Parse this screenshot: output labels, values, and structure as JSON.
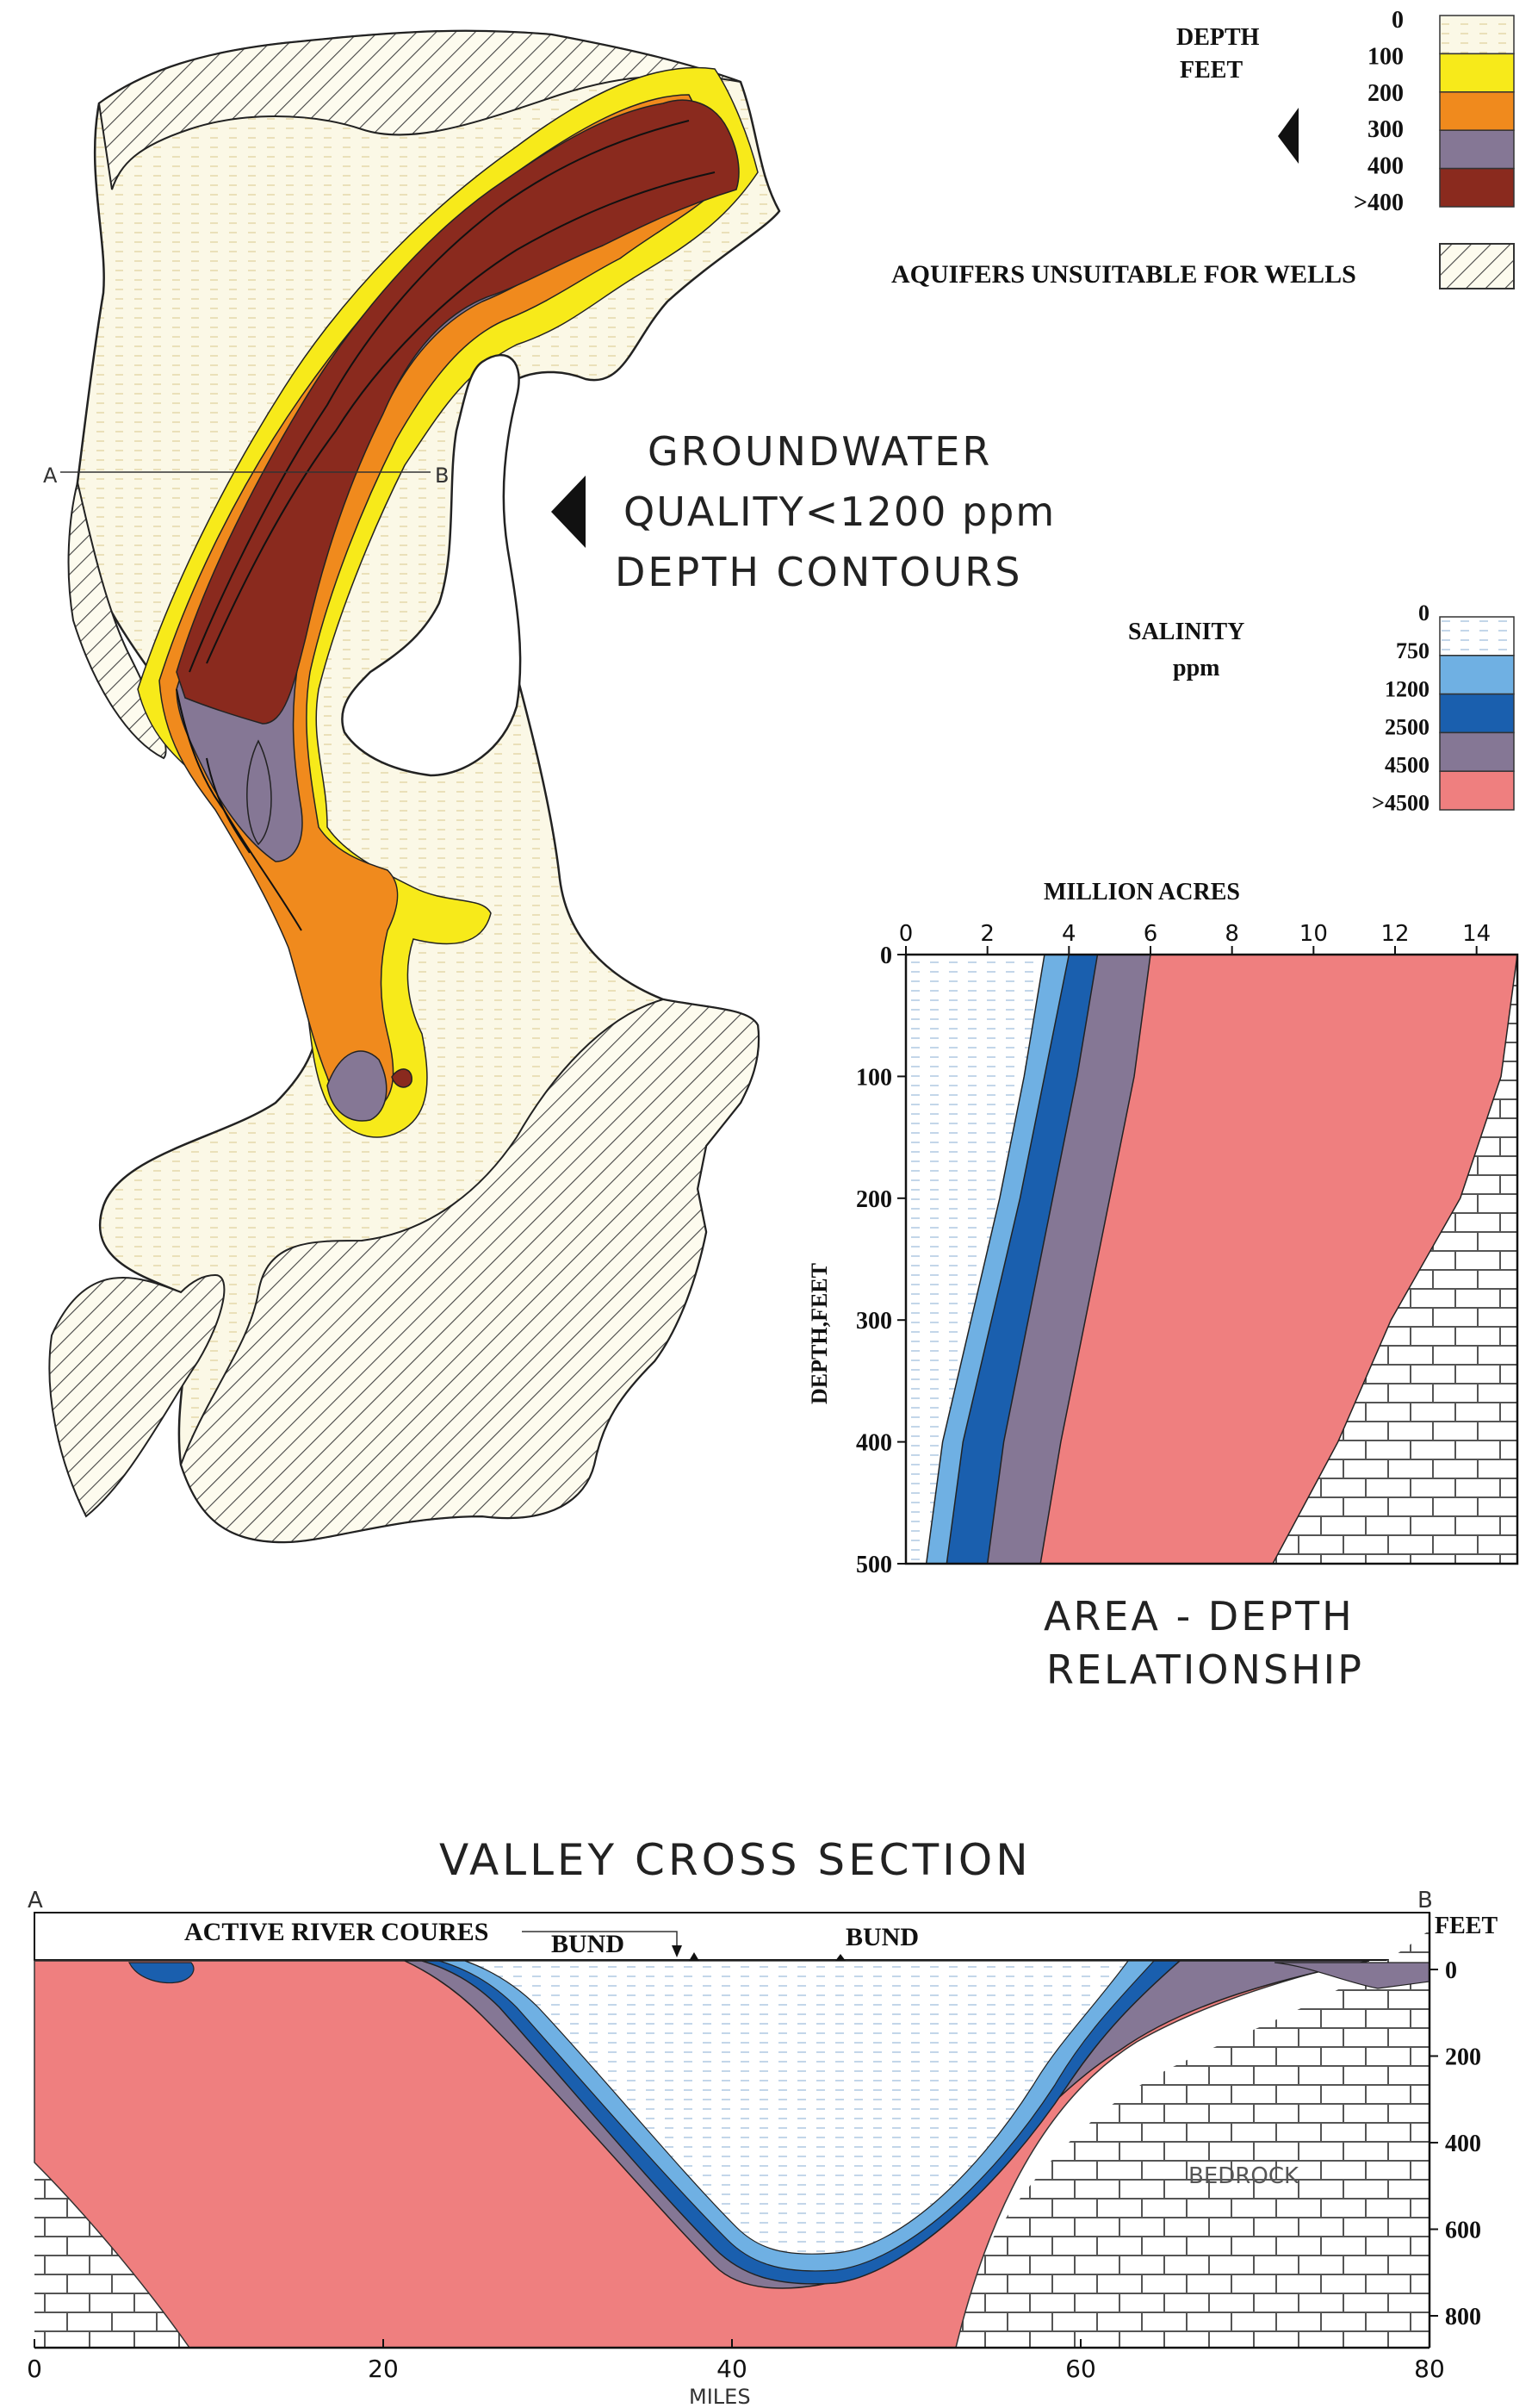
{
  "map": {
    "title_lines": [
      "GROUNDWATER",
      "QUALITY<1200 ppm",
      "DEPTH  CONTOURS"
    ],
    "section_line": {
      "start_label": "A",
      "end_label": "B"
    }
  },
  "depth_legend": {
    "title_lines": [
      "DEPTH",
      "FEET"
    ],
    "items": [
      {
        "label": "0",
        "color": "#fbf8e6"
      },
      {
        "label": "100",
        "color": "#f7ea1a"
      },
      {
        "label": "200",
        "color": "#f08a1d"
      },
      {
        "label": "300",
        "color": "#857795"
      },
      {
        "label": "400",
        "color": "#8a2a1e"
      },
      {
        "label": ">400",
        "color": "#8a2a1e"
      }
    ]
  },
  "unsuitable_legend": {
    "label": "AQUIFERS UNSUITABLE FOR WELLS"
  },
  "salinity_legend": {
    "title_lines": [
      "SALINITY",
      "ppm"
    ],
    "items": [
      {
        "label": "0",
        "color": "#ffffff"
      },
      {
        "label": "750",
        "color": "#eaf2fa"
      },
      {
        "label": "1200",
        "color": "#6fb0e3"
      },
      {
        "label": "2500",
        "color": "#1a5fae"
      },
      {
        "label": "4500",
        "color": "#857795"
      },
      {
        "label": ">4500",
        "color": "#ef7f7f"
      }
    ]
  },
  "area_depth": {
    "x_axis_title": "MILLION ACRES",
    "y_axis_title": "DEPTH,FEET",
    "x_ticks": [
      "0",
      "2",
      "4",
      "6",
      "8",
      "10",
      "12",
      "14"
    ],
    "y_ticks": [
      "0",
      "100",
      "200",
      "300",
      "400",
      "500"
    ],
    "caption_lines": [
      "AREA - DEPTH",
      "RELATIONSHIP"
    ]
  },
  "chart_data": {
    "type": "area",
    "title": "",
    "xlabel": "MILLION ACRES",
    "ylabel": "DEPTH,FEET",
    "xlim": [
      0,
      15
    ],
    "ylim": [
      500,
      0
    ],
    "y": [
      0,
      100,
      200,
      300,
      400,
      500
    ],
    "series": [
      {
        "name": "750",
        "values": [
          3.4,
          2.9,
          2.3,
          1.6,
          0.9,
          0.5
        ]
      },
      {
        "name": "1200",
        "values": [
          4.0,
          3.4,
          2.8,
          2.1,
          1.4,
          1.0
        ]
      },
      {
        "name": "2500",
        "values": [
          4.7,
          4.2,
          3.6,
          3.0,
          2.4,
          2.0
        ]
      },
      {
        "name": "4500",
        "values": [
          6.0,
          5.6,
          5.0,
          4.4,
          3.8,
          3.3
        ]
      },
      {
        "name": ">4500",
        "values": [
          15.0,
          14.6,
          13.6,
          11.9,
          10.6,
          9.0
        ]
      }
    ]
  },
  "cross_section": {
    "title": "VALLEY CROSS SECTION",
    "start_label": "A",
    "end_label": "B",
    "feet_label": "FEET",
    "miles_label": "MILES",
    "depth_ticks": [
      "0",
      "200",
      "400",
      "600",
      "800"
    ],
    "mile_ticks": [
      "0",
      "20",
      "40",
      "60",
      "80"
    ],
    "labels": {
      "river": "ACTIVE RIVER COURES",
      "bund_1": "BUND",
      "bund_2": "BUND",
      "bedrock": "BEDROCK"
    }
  }
}
